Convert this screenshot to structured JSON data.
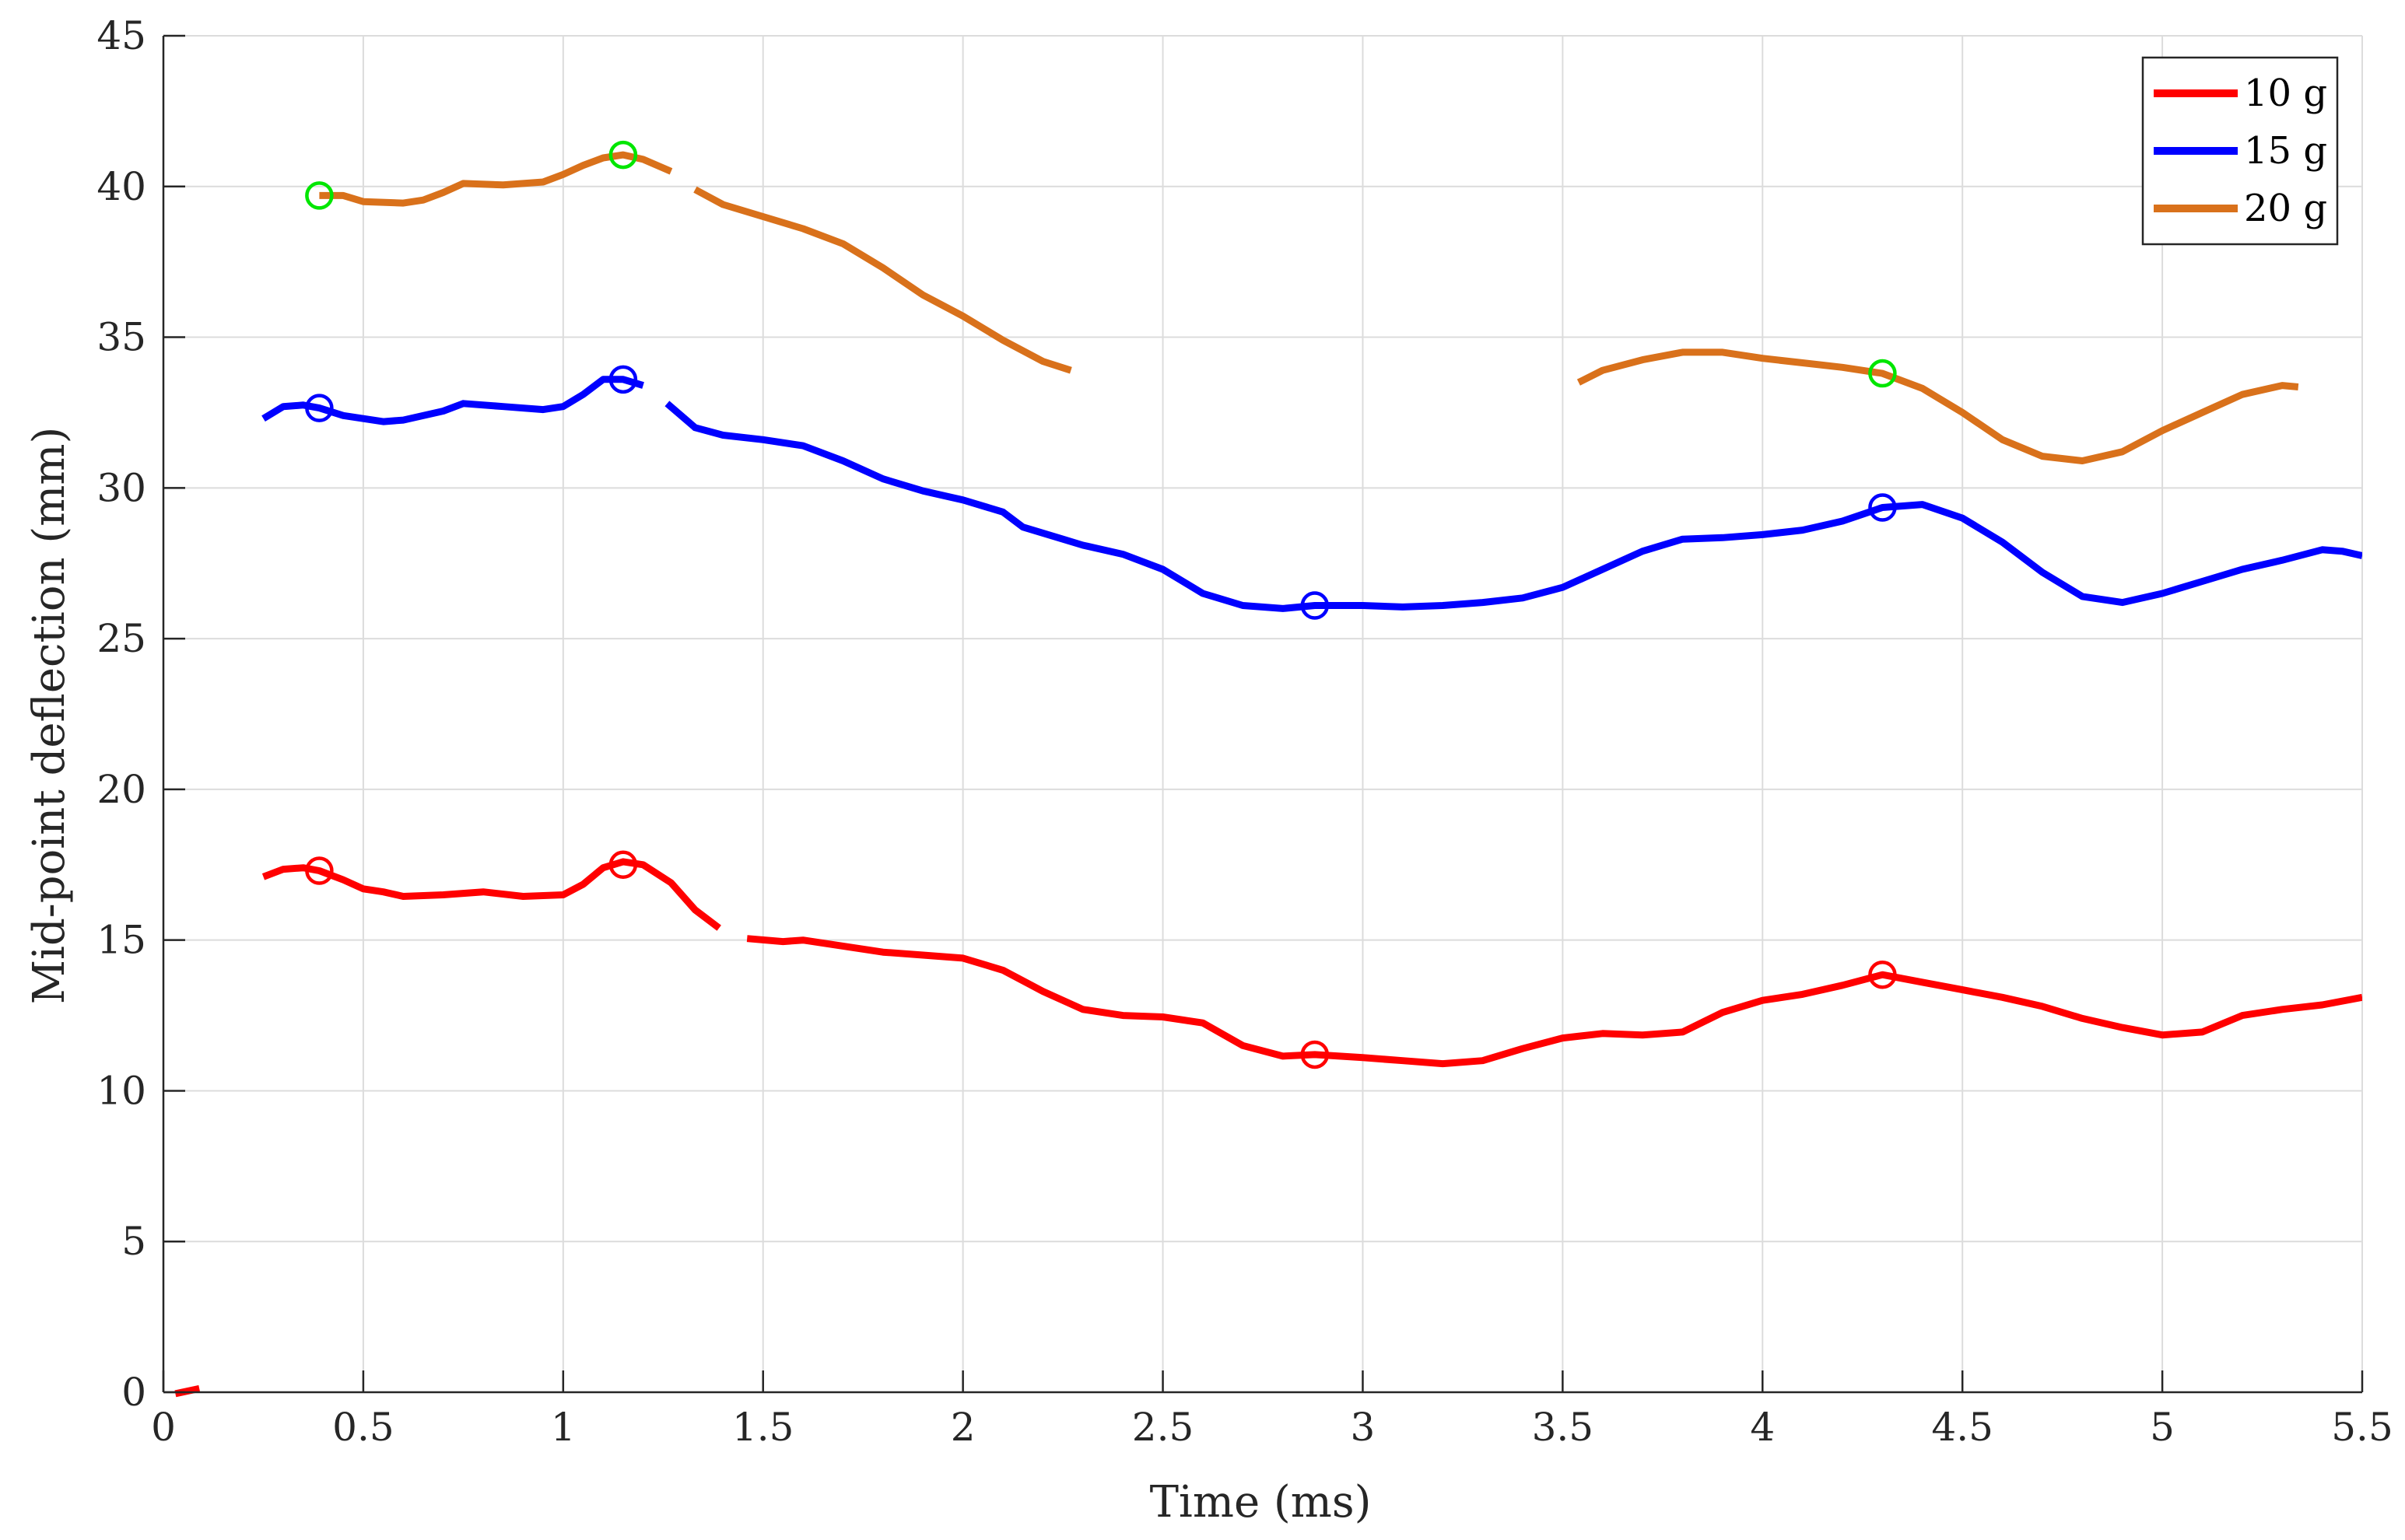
{
  "chart_data": {
    "type": "line",
    "xlabel": "Time (ms)",
    "ylabel": "Mid-point deflection (mm)",
    "xlim": [
      0,
      5.5
    ],
    "ylim": [
      0,
      45
    ],
    "xticks": [
      0,
      0.5,
      1,
      1.5,
      2,
      2.5,
      3,
      3.5,
      4,
      4.5,
      5,
      5.5
    ],
    "xtick_labels": [
      "0",
      "0.5",
      "1",
      "1.5",
      "2",
      "2.5",
      "3",
      "3.5",
      "4",
      "4.5",
      "5",
      "5.5"
    ],
    "yticks": [
      0,
      5,
      10,
      15,
      20,
      25,
      30,
      35,
      40,
      45
    ],
    "ytick_labels": [
      "0",
      "5",
      "10",
      "15",
      "20",
      "25",
      "30",
      "35",
      "40",
      "45"
    ],
    "grid": true,
    "legend_position": "top-right",
    "series": [
      {
        "name": "10 g",
        "color": "#ff0000",
        "segments": [
          [
            [
              0.03,
              -0.05
            ],
            [
              0.09,
              0.12
            ]
          ],
          [
            [
              0.25,
              17.1
            ],
            [
              0.3,
              17.35
            ],
            [
              0.35,
              17.4
            ],
            [
              0.39,
              17.3
            ],
            [
              0.45,
              17.0
            ],
            [
              0.5,
              16.7
            ],
            [
              0.55,
              16.6
            ],
            [
              0.6,
              16.45
            ],
            [
              0.7,
              16.5
            ],
            [
              0.8,
              16.6
            ],
            [
              0.9,
              16.45
            ],
            [
              1.0,
              16.5
            ],
            [
              1.05,
              16.85
            ],
            [
              1.1,
              17.4
            ],
            [
              1.15,
              17.6
            ],
            [
              1.2,
              17.5
            ],
            [
              1.27,
              16.9
            ],
            [
              1.33,
              16.0
            ],
            [
              1.39,
              15.4
            ]
          ],
          [
            [
              1.46,
              15.05
            ],
            [
              1.55,
              14.95
            ],
            [
              1.6,
              15.0
            ],
            [
              1.7,
              14.8
            ],
            [
              1.8,
              14.6
            ],
            [
              1.9,
              14.5
            ],
            [
              2.0,
              14.4
            ],
            [
              2.1,
              14.0
            ],
            [
              2.2,
              13.3
            ],
            [
              2.3,
              12.7
            ],
            [
              2.4,
              12.5
            ],
            [
              2.5,
              12.45
            ],
            [
              2.6,
              12.25
            ],
            [
              2.7,
              11.5
            ],
            [
              2.8,
              11.15
            ],
            [
              2.88,
              11.2
            ],
            [
              3.0,
              11.1
            ],
            [
              3.1,
              11.0
            ],
            [
              3.2,
              10.9
            ],
            [
              3.3,
              11.0
            ],
            [
              3.4,
              11.4
            ],
            [
              3.5,
              11.75
            ],
            [
              3.6,
              11.9
            ],
            [
              3.7,
              11.85
            ],
            [
              3.8,
              11.95
            ],
            [
              3.9,
              12.6
            ],
            [
              4.0,
              13.0
            ],
            [
              4.1,
              13.2
            ],
            [
              4.2,
              13.5
            ],
            [
              4.3,
              13.85
            ],
            [
              4.4,
              13.6
            ],
            [
              4.5,
              13.35
            ],
            [
              4.6,
              13.1
            ],
            [
              4.7,
              12.8
            ],
            [
              4.8,
              12.4
            ],
            [
              4.9,
              12.1
            ],
            [
              5.0,
              11.85
            ],
            [
              5.1,
              11.95
            ],
            [
              5.2,
              12.5
            ],
            [
              5.3,
              12.7
            ],
            [
              5.4,
              12.85
            ],
            [
              5.5,
              13.1
            ]
          ]
        ],
        "markers": [
          [
            0.39,
            17.3
          ],
          [
            1.15,
            17.5
          ],
          [
            2.88,
            11.2
          ],
          [
            4.3,
            13.85
          ]
        ],
        "marker_color": "#ff0000"
      },
      {
        "name": "15 g",
        "color": "#0000ff",
        "segments": [
          [
            [
              0.25,
              32.3
            ],
            [
              0.3,
              32.7
            ],
            [
              0.35,
              32.75
            ],
            [
              0.39,
              32.65
            ],
            [
              0.45,
              32.4
            ],
            [
              0.55,
              32.2
            ],
            [
              0.6,
              32.25
            ],
            [
              0.7,
              32.55
            ],
            [
              0.75,
              32.8
            ],
            [
              0.85,
              32.7
            ],
            [
              0.95,
              32.6
            ],
            [
              1.0,
              32.7
            ],
            [
              1.05,
              33.1
            ],
            [
              1.1,
              33.6
            ],
            [
              1.15,
              33.6
            ],
            [
              1.2,
              33.4
            ]
          ],
          [
            [
              1.26,
              32.8
            ],
            [
              1.33,
              32.0
            ],
            [
              1.4,
              31.75
            ],
            [
              1.5,
              31.6
            ],
            [
              1.6,
              31.4
            ],
            [
              1.7,
              30.9
            ],
            [
              1.8,
              30.3
            ],
            [
              1.9,
              29.9
            ],
            [
              2.0,
              29.6
            ],
            [
              2.1,
              29.2
            ],
            [
              2.15,
              28.7
            ],
            [
              2.25,
              28.3
            ],
            [
              2.3,
              28.1
            ],
            [
              2.4,
              27.8
            ],
            [
              2.5,
              27.3
            ],
            [
              2.6,
              26.5
            ],
            [
              2.7,
              26.1
            ],
            [
              2.8,
              26.0
            ],
            [
              2.88,
              26.1
            ],
            [
              3.0,
              26.1
            ],
            [
              3.1,
              26.05
            ],
            [
              3.2,
              26.1
            ],
            [
              3.3,
              26.2
            ],
            [
              3.4,
              26.35
            ],
            [
              3.5,
              26.7
            ],
            [
              3.6,
              27.3
            ],
            [
              3.7,
              27.9
            ],
            [
              3.8,
              28.3
            ],
            [
              3.9,
              28.35
            ],
            [
              4.0,
              28.45
            ],
            [
              4.1,
              28.6
            ],
            [
              4.2,
              28.9
            ],
            [
              4.3,
              29.35
            ],
            [
              4.4,
              29.45
            ],
            [
              4.5,
              29.0
            ],
            [
              4.6,
              28.2
            ],
            [
              4.7,
              27.2
            ],
            [
              4.8,
              26.4
            ],
            [
              4.9,
              26.2
            ],
            [
              5.0,
              26.5
            ],
            [
              5.1,
              26.9
            ],
            [
              5.2,
              27.3
            ],
            [
              5.3,
              27.6
            ],
            [
              5.4,
              27.95
            ],
            [
              5.45,
              27.9
            ],
            [
              5.5,
              27.75
            ]
          ]
        ],
        "markers": [
          [
            0.39,
            32.65
          ],
          [
            1.15,
            33.6
          ],
          [
            2.88,
            26.1
          ],
          [
            4.3,
            29.35
          ]
        ],
        "marker_color": "#0000ff"
      },
      {
        "name": "20 g",
        "color": "#d9711b",
        "segments": [
          [
            [
              0.39,
              39.7
            ],
            [
              0.45,
              39.7
            ],
            [
              0.5,
              39.5
            ],
            [
              0.6,
              39.45
            ],
            [
              0.65,
              39.55
            ],
            [
              0.7,
              39.8
            ],
            [
              0.75,
              40.1
            ],
            [
              0.85,
              40.05
            ],
            [
              0.95,
              40.15
            ],
            [
              1.0,
              40.4
            ],
            [
              1.05,
              40.7
            ],
            [
              1.1,
              40.95
            ],
            [
              1.15,
              41.05
            ],
            [
              1.2,
              40.9
            ],
            [
              1.27,
              40.5
            ]
          ],
          [
            [
              1.33,
              39.9
            ],
            [
              1.4,
              39.4
            ],
            [
              1.5,
              39.0
            ],
            [
              1.6,
              38.6
            ],
            [
              1.7,
              38.1
            ],
            [
              1.8,
              37.3
            ],
            [
              1.9,
              36.4
            ],
            [
              2.0,
              35.7
            ],
            [
              2.1,
              34.9
            ],
            [
              2.2,
              34.2
            ],
            [
              2.27,
              33.9
            ]
          ],
          [
            [
              3.54,
              33.5
            ],
            [
              3.6,
              33.9
            ],
            [
              3.7,
              34.25
            ],
            [
              3.8,
              34.5
            ],
            [
              3.9,
              34.5
            ],
            [
              4.0,
              34.3
            ],
            [
              4.1,
              34.15
            ],
            [
              4.2,
              34.0
            ],
            [
              4.3,
              33.8
            ],
            [
              4.4,
              33.3
            ],
            [
              4.5,
              32.5
            ],
            [
              4.6,
              31.6
            ],
            [
              4.7,
              31.05
            ],
            [
              4.8,
              30.9
            ],
            [
              4.9,
              31.2
            ],
            [
              5.0,
              31.9
            ],
            [
              5.1,
              32.5
            ],
            [
              5.2,
              33.1
            ],
            [
              5.3,
              33.4
            ],
            [
              5.34,
              33.35
            ]
          ]
        ],
        "markers": [
          [
            0.39,
            39.7
          ],
          [
            1.15,
            41.05
          ],
          [
            4.3,
            33.8
          ]
        ],
        "marker_color": "#00e600"
      }
    ]
  }
}
